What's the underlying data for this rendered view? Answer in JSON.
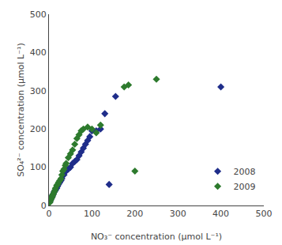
{
  "chart_data": {
    "type": "scatter",
    "xlabel": "NO₃⁻ concentration (μmol L⁻¹)",
    "ylabel": "SO₄²⁻ concentration (μmol L⁻¹)",
    "series": [
      {
        "name": "2008",
        "color": "#1f2d8a",
        "marker": "diamond",
        "x": [
          2,
          4,
          5,
          6,
          7,
          8,
          9,
          10,
          12,
          14,
          15,
          18,
          20,
          22,
          25,
          28,
          30,
          35,
          40,
          45,
          50,
          55,
          60,
          65,
          70,
          75,
          80,
          85,
          90,
          95,
          100,
          110,
          120,
          130,
          140,
          155,
          400
        ],
        "values": [
          10,
          15,
          18,
          20,
          22,
          25,
          28,
          30,
          35,
          38,
          40,
          45,
          50,
          55,
          60,
          65,
          70,
          80,
          90,
          95,
          100,
          110,
          115,
          120,
          130,
          140,
          150,
          160,
          170,
          180,
          195,
          195,
          200,
          240,
          55,
          285,
          310
        ]
      },
      {
        "name": "2009",
        "color": "#2d7a2d",
        "marker": "diamond",
        "x": [
          2,
          3,
          4,
          5,
          6,
          7,
          8,
          9,
          10,
          12,
          14,
          15,
          18,
          20,
          22,
          25,
          28,
          30,
          32,
          35,
          38,
          40,
          45,
          50,
          55,
          60,
          65,
          70,
          75,
          80,
          90,
          100,
          110,
          120,
          175,
          185,
          200,
          250
        ],
        "values": [
          8,
          12,
          15,
          18,
          20,
          22,
          25,
          28,
          30,
          35,
          40,
          45,
          52,
          55,
          60,
          65,
          70,
          80,
          90,
          95,
          105,
          110,
          125,
          135,
          145,
          160,
          175,
          185,
          195,
          200,
          205,
          200,
          190,
          210,
          310,
          315,
          90,
          330
        ]
      }
    ],
    "xlim": [
      0,
      500
    ],
    "ylim": [
      0,
      500
    ],
    "xticks": [
      0,
      100,
      200,
      300,
      400,
      500
    ],
    "yticks": [
      0,
      100,
      200,
      300,
      400,
      500
    ],
    "grid": false,
    "legend": "lower right"
  }
}
